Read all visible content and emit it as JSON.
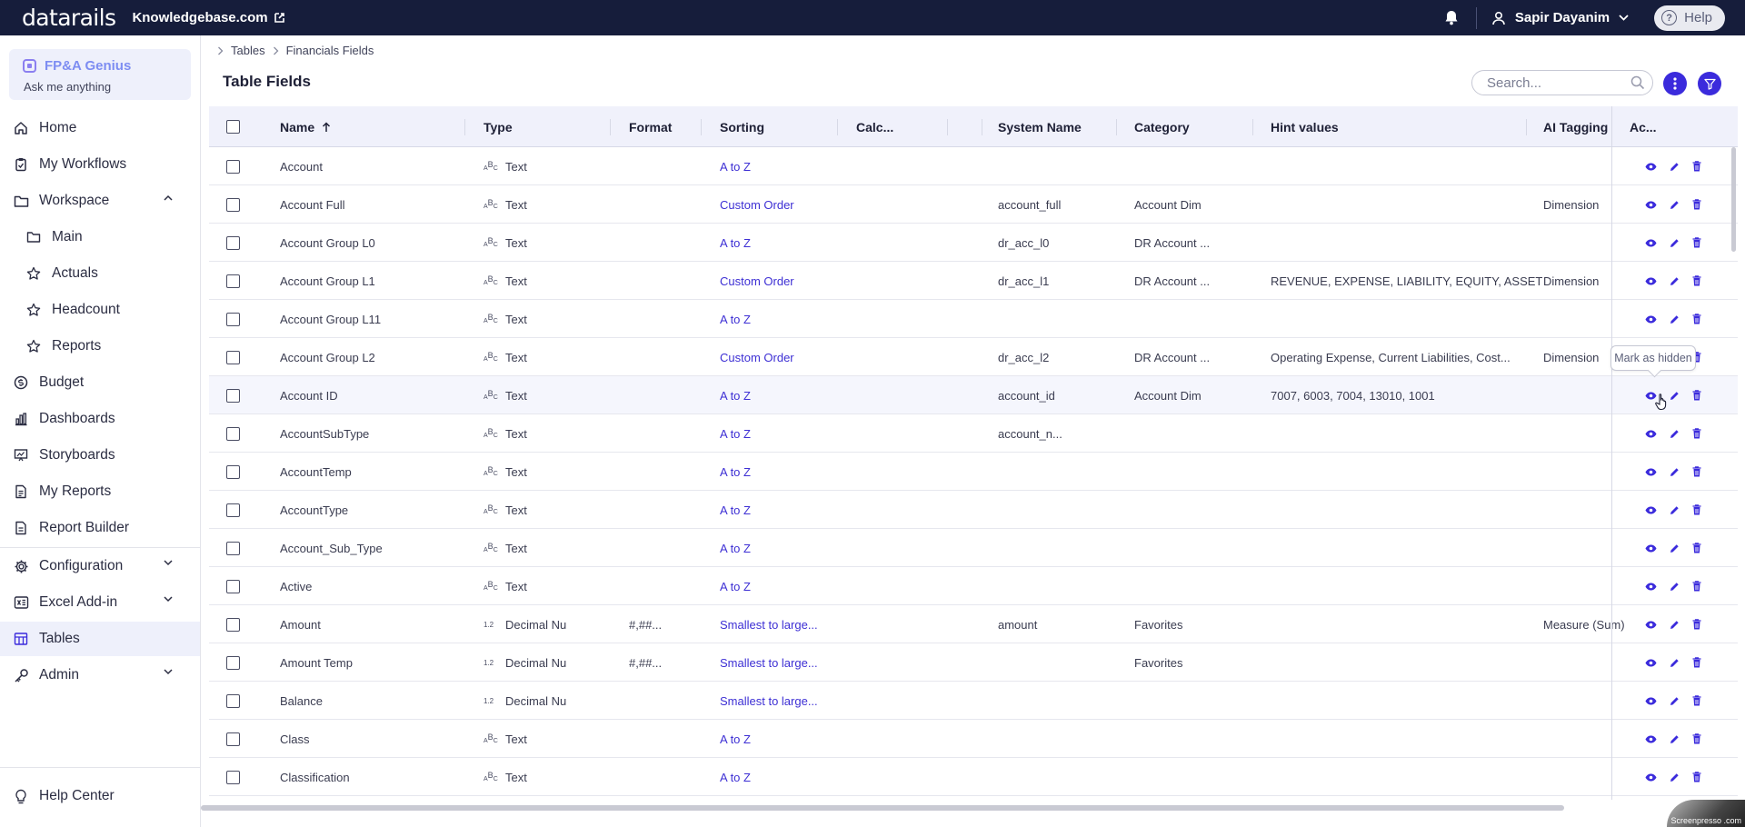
{
  "topbar": {
    "logo": "datarails",
    "org": "Knowledgebase.com",
    "user": "Sapir Dayanim",
    "help": "Help"
  },
  "sidebar": {
    "genius": {
      "title": "FP&A Genius",
      "subtitle": "Ask me anything"
    },
    "items": [
      {
        "label": "Home",
        "icon": "home-icon"
      },
      {
        "label": "My Workflows",
        "icon": "clipboard-icon"
      },
      {
        "label": "Workspace",
        "icon": "folder-icon",
        "expanded": true
      },
      {
        "label": "Main",
        "icon": "folder-icon"
      },
      {
        "label": "Actuals",
        "icon": "star-icon"
      },
      {
        "label": "Headcount",
        "icon": "star-icon"
      },
      {
        "label": "Reports",
        "icon": "star-icon"
      },
      {
        "label": "Budget",
        "icon": "coin-icon"
      },
      {
        "label": "Dashboards",
        "icon": "bar-chart-icon"
      },
      {
        "label": "Storyboards",
        "icon": "presentation-icon"
      },
      {
        "label": "My Reports",
        "icon": "document-icon"
      },
      {
        "label": "Report Builder",
        "icon": "document-icon"
      },
      {
        "label": "Configuration",
        "icon": "gear-icon"
      },
      {
        "label": "Excel Add-in",
        "icon": "excel-icon"
      },
      {
        "label": "Tables",
        "icon": "table-icon",
        "active": true
      },
      {
        "label": "Admin",
        "icon": "key-icon"
      }
    ],
    "help_center": "Help Center"
  },
  "breadcrumb": [
    "Tables",
    "Financials Fields"
  ],
  "page_title": "Table Fields",
  "search": {
    "placeholder": "Search...",
    "value": ""
  },
  "table": {
    "columns": {
      "name": "Name",
      "type": "Type",
      "format": "Format",
      "sorting": "Sorting",
      "calc": "Calc...",
      "system_name": "System Name",
      "category": "Category",
      "hint_values": "Hint values",
      "ai_tagging": "AI Tagging",
      "actions": "Ac..."
    },
    "rows": [
      {
        "name": "Account",
        "type_glyph": "text",
        "type": "Text",
        "format": "",
        "sorting": "A to Z",
        "system_name": "",
        "category": "",
        "hint_values": "",
        "ai_tagging": ""
      },
      {
        "name": "Account Full",
        "type_glyph": "text",
        "type": "Text",
        "format": "",
        "sorting": "Custom Order",
        "system_name": "account_full",
        "category": "Account Dim",
        "hint_values": "",
        "ai_tagging": "Dimension"
      },
      {
        "name": "Account Group L0",
        "type_glyph": "text",
        "type": "Text",
        "format": "",
        "sorting": "A to Z",
        "system_name": "dr_acc_l0",
        "category": "DR Account ...",
        "hint_values": "",
        "ai_tagging": ""
      },
      {
        "name": "Account Group L1",
        "type_glyph": "text",
        "type": "Text",
        "format": "",
        "sorting": "Custom Order",
        "system_name": "dr_acc_l1",
        "category": "DR Account ...",
        "hint_values": "REVENUE, EXPENSE, LIABILITY, EQUITY, ASSET",
        "ai_tagging": "Dimension"
      },
      {
        "name": "Account Group L11",
        "type_glyph": "text",
        "type": "Text",
        "format": "",
        "sorting": "A to Z",
        "system_name": "",
        "category": "",
        "hint_values": "",
        "ai_tagging": ""
      },
      {
        "name": "Account Group L2",
        "type_glyph": "text",
        "type": "Text",
        "format": "",
        "sorting": "Custom Order",
        "system_name": "dr_acc_l2",
        "category": "DR Account ...",
        "hint_values": "Operating Expense, Current Liabilities, Cost...",
        "ai_tagging": "Dimension"
      },
      {
        "name": "Account ID",
        "type_glyph": "text",
        "type": "Text",
        "format": "",
        "sorting": "A to Z",
        "system_name": "account_id",
        "category": "Account Dim",
        "hint_values": "7007, 6003, 7004, 13010, 1001",
        "ai_tagging": ""
      },
      {
        "name": "AccountSubType",
        "type_glyph": "text",
        "type": "Text",
        "format": "",
        "sorting": "A to Z",
        "system_name": "account_n...",
        "category": "",
        "hint_values": "",
        "ai_tagging": ""
      },
      {
        "name": "AccountTemp",
        "type_glyph": "text",
        "type": "Text",
        "format": "",
        "sorting": "A to Z",
        "system_name": "",
        "category": "",
        "hint_values": "",
        "ai_tagging": ""
      },
      {
        "name": "AccountType",
        "type_glyph": "text",
        "type": "Text",
        "format": "",
        "sorting": "A to Z",
        "system_name": "",
        "category": "",
        "hint_values": "",
        "ai_tagging": ""
      },
      {
        "name": "Account_Sub_Type",
        "type_glyph": "text",
        "type": "Text",
        "format": "",
        "sorting": "A to Z",
        "system_name": "",
        "category": "",
        "hint_values": "",
        "ai_tagging": ""
      },
      {
        "name": "Active",
        "type_glyph": "text",
        "type": "Text",
        "format": "",
        "sorting": "A to Z",
        "system_name": "",
        "category": "",
        "hint_values": "",
        "ai_tagging": ""
      },
      {
        "name": "Amount",
        "type_glyph": "1.2",
        "type": "Decimal Nu",
        "format": "#,##...",
        "sorting": "Smallest to large...",
        "system_name": "amount",
        "category": "Favorites",
        "hint_values": "",
        "ai_tagging": "Measure (Sum)"
      },
      {
        "name": "Amount Temp",
        "type_glyph": "1.2",
        "type": "Decimal Nu",
        "format": "#,##...",
        "sorting": "Smallest to large...",
        "system_name": "",
        "category": "Favorites",
        "hint_values": "",
        "ai_tagging": ""
      },
      {
        "name": "Balance",
        "type_glyph": "1.2",
        "type": "Decimal Nu",
        "format": "",
        "sorting": "Smallest to large...",
        "system_name": "",
        "category": "",
        "hint_values": "",
        "ai_tagging": ""
      },
      {
        "name": "Class",
        "type_glyph": "text",
        "type": "Text",
        "format": "",
        "sorting": "A to Z",
        "system_name": "",
        "category": "",
        "hint_values": "",
        "ai_tagging": ""
      },
      {
        "name": "Classification",
        "type_glyph": "text",
        "type": "Text",
        "format": "",
        "sorting": "A to Z",
        "system_name": "",
        "category": "",
        "hint_values": "",
        "ai_tagging": ""
      }
    ],
    "hovered_row": 6
  },
  "tooltip": "Mark as hidden",
  "watermark": "Screenpresso .com",
  "colors": {
    "topbar": "#161d3b",
    "accent": "#3b2bdc",
    "link": "#3d2fd4",
    "sidebar_active": "#eef0fb"
  }
}
